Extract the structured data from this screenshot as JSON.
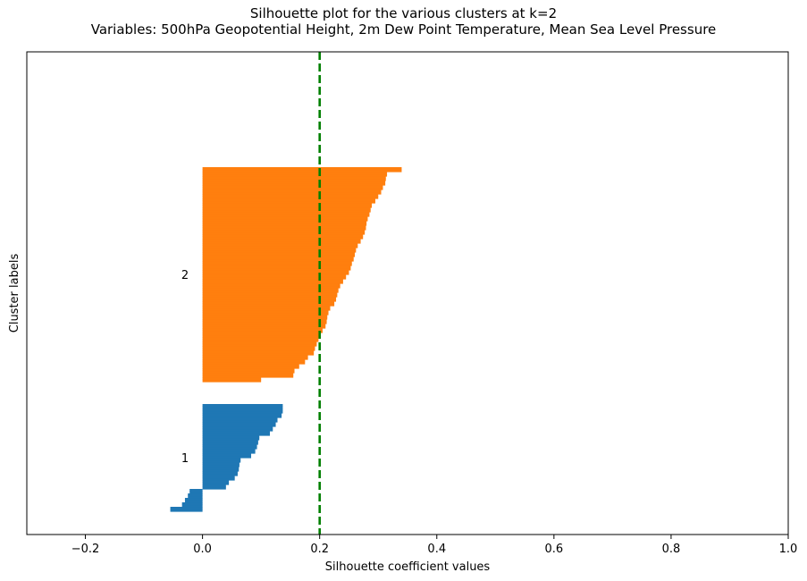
{
  "chart_data": {
    "type": "bar",
    "orientation": "horizontal",
    "title_lines": [
      "Silhouette plot for the various clusters at k=2",
      "Variables: 500hPa Geopotential Height, 2m Dew Point Temperature, Mean Sea Level Pressure"
    ],
    "xlabel": "Silhouette coefficient values",
    "ylabel": "Cluster labels",
    "xlim": [
      -0.3,
      1.0
    ],
    "xticks": [
      -0.2,
      0.0,
      0.2,
      0.4,
      0.6,
      0.8,
      1.0
    ],
    "xtick_labels": [
      "−0.2",
      "0.0",
      "0.2",
      "0.4",
      "0.6",
      "0.8",
      "1.0"
    ],
    "average_silhouette_score": 0.2,
    "average_line_style": {
      "color": "#008000",
      "dash": "dashed"
    },
    "grid": false,
    "series": [
      {
        "name": "1",
        "color": "#1f77b4",
        "sorted_silhouette_values": [
          -0.055,
          -0.055,
          -0.035,
          -0.035,
          -0.03,
          -0.03,
          -0.025,
          -0.025,
          -0.022,
          -0.022,
          0.04,
          0.04,
          0.045,
          0.045,
          0.055,
          0.055,
          0.06,
          0.06,
          0.062,
          0.062,
          0.063,
          0.063,
          0.065,
          0.065,
          0.083,
          0.083,
          0.09,
          0.09,
          0.093,
          0.093,
          0.095,
          0.095,
          0.097,
          0.097,
          0.115,
          0.115,
          0.12,
          0.12,
          0.125,
          0.125,
          0.128,
          0.128,
          0.135,
          0.135,
          0.137,
          0.137,
          0.137,
          0.137
        ]
      },
      {
        "name": "2",
        "color": "#ff7f0e",
        "sorted_silhouette_values": [
          0.1,
          0.1,
          0.155,
          0.155,
          0.157,
          0.157,
          0.165,
          0.165,
          0.175,
          0.175,
          0.18,
          0.18,
          0.19,
          0.19,
          0.192,
          0.192,
          0.195,
          0.195,
          0.198,
          0.198,
          0.2,
          0.2,
          0.205,
          0.205,
          0.21,
          0.21,
          0.212,
          0.212,
          0.213,
          0.213,
          0.215,
          0.215,
          0.218,
          0.218,
          0.225,
          0.225,
          0.228,
          0.228,
          0.23,
          0.23,
          0.232,
          0.232,
          0.235,
          0.235,
          0.24,
          0.24,
          0.245,
          0.245,
          0.25,
          0.25,
          0.253,
          0.253,
          0.255,
          0.255,
          0.258,
          0.258,
          0.26,
          0.26,
          0.262,
          0.262,
          0.265,
          0.265,
          0.27,
          0.27,
          0.274,
          0.274,
          0.277,
          0.277,
          0.279,
          0.279,
          0.28,
          0.28,
          0.282,
          0.282,
          0.285,
          0.285,
          0.287,
          0.287,
          0.289,
          0.289,
          0.295,
          0.295,
          0.3,
          0.3,
          0.305,
          0.305,
          0.308,
          0.308,
          0.312,
          0.312,
          0.313,
          0.313,
          0.315,
          0.315,
          0.34,
          0.34
        ]
      }
    ]
  }
}
